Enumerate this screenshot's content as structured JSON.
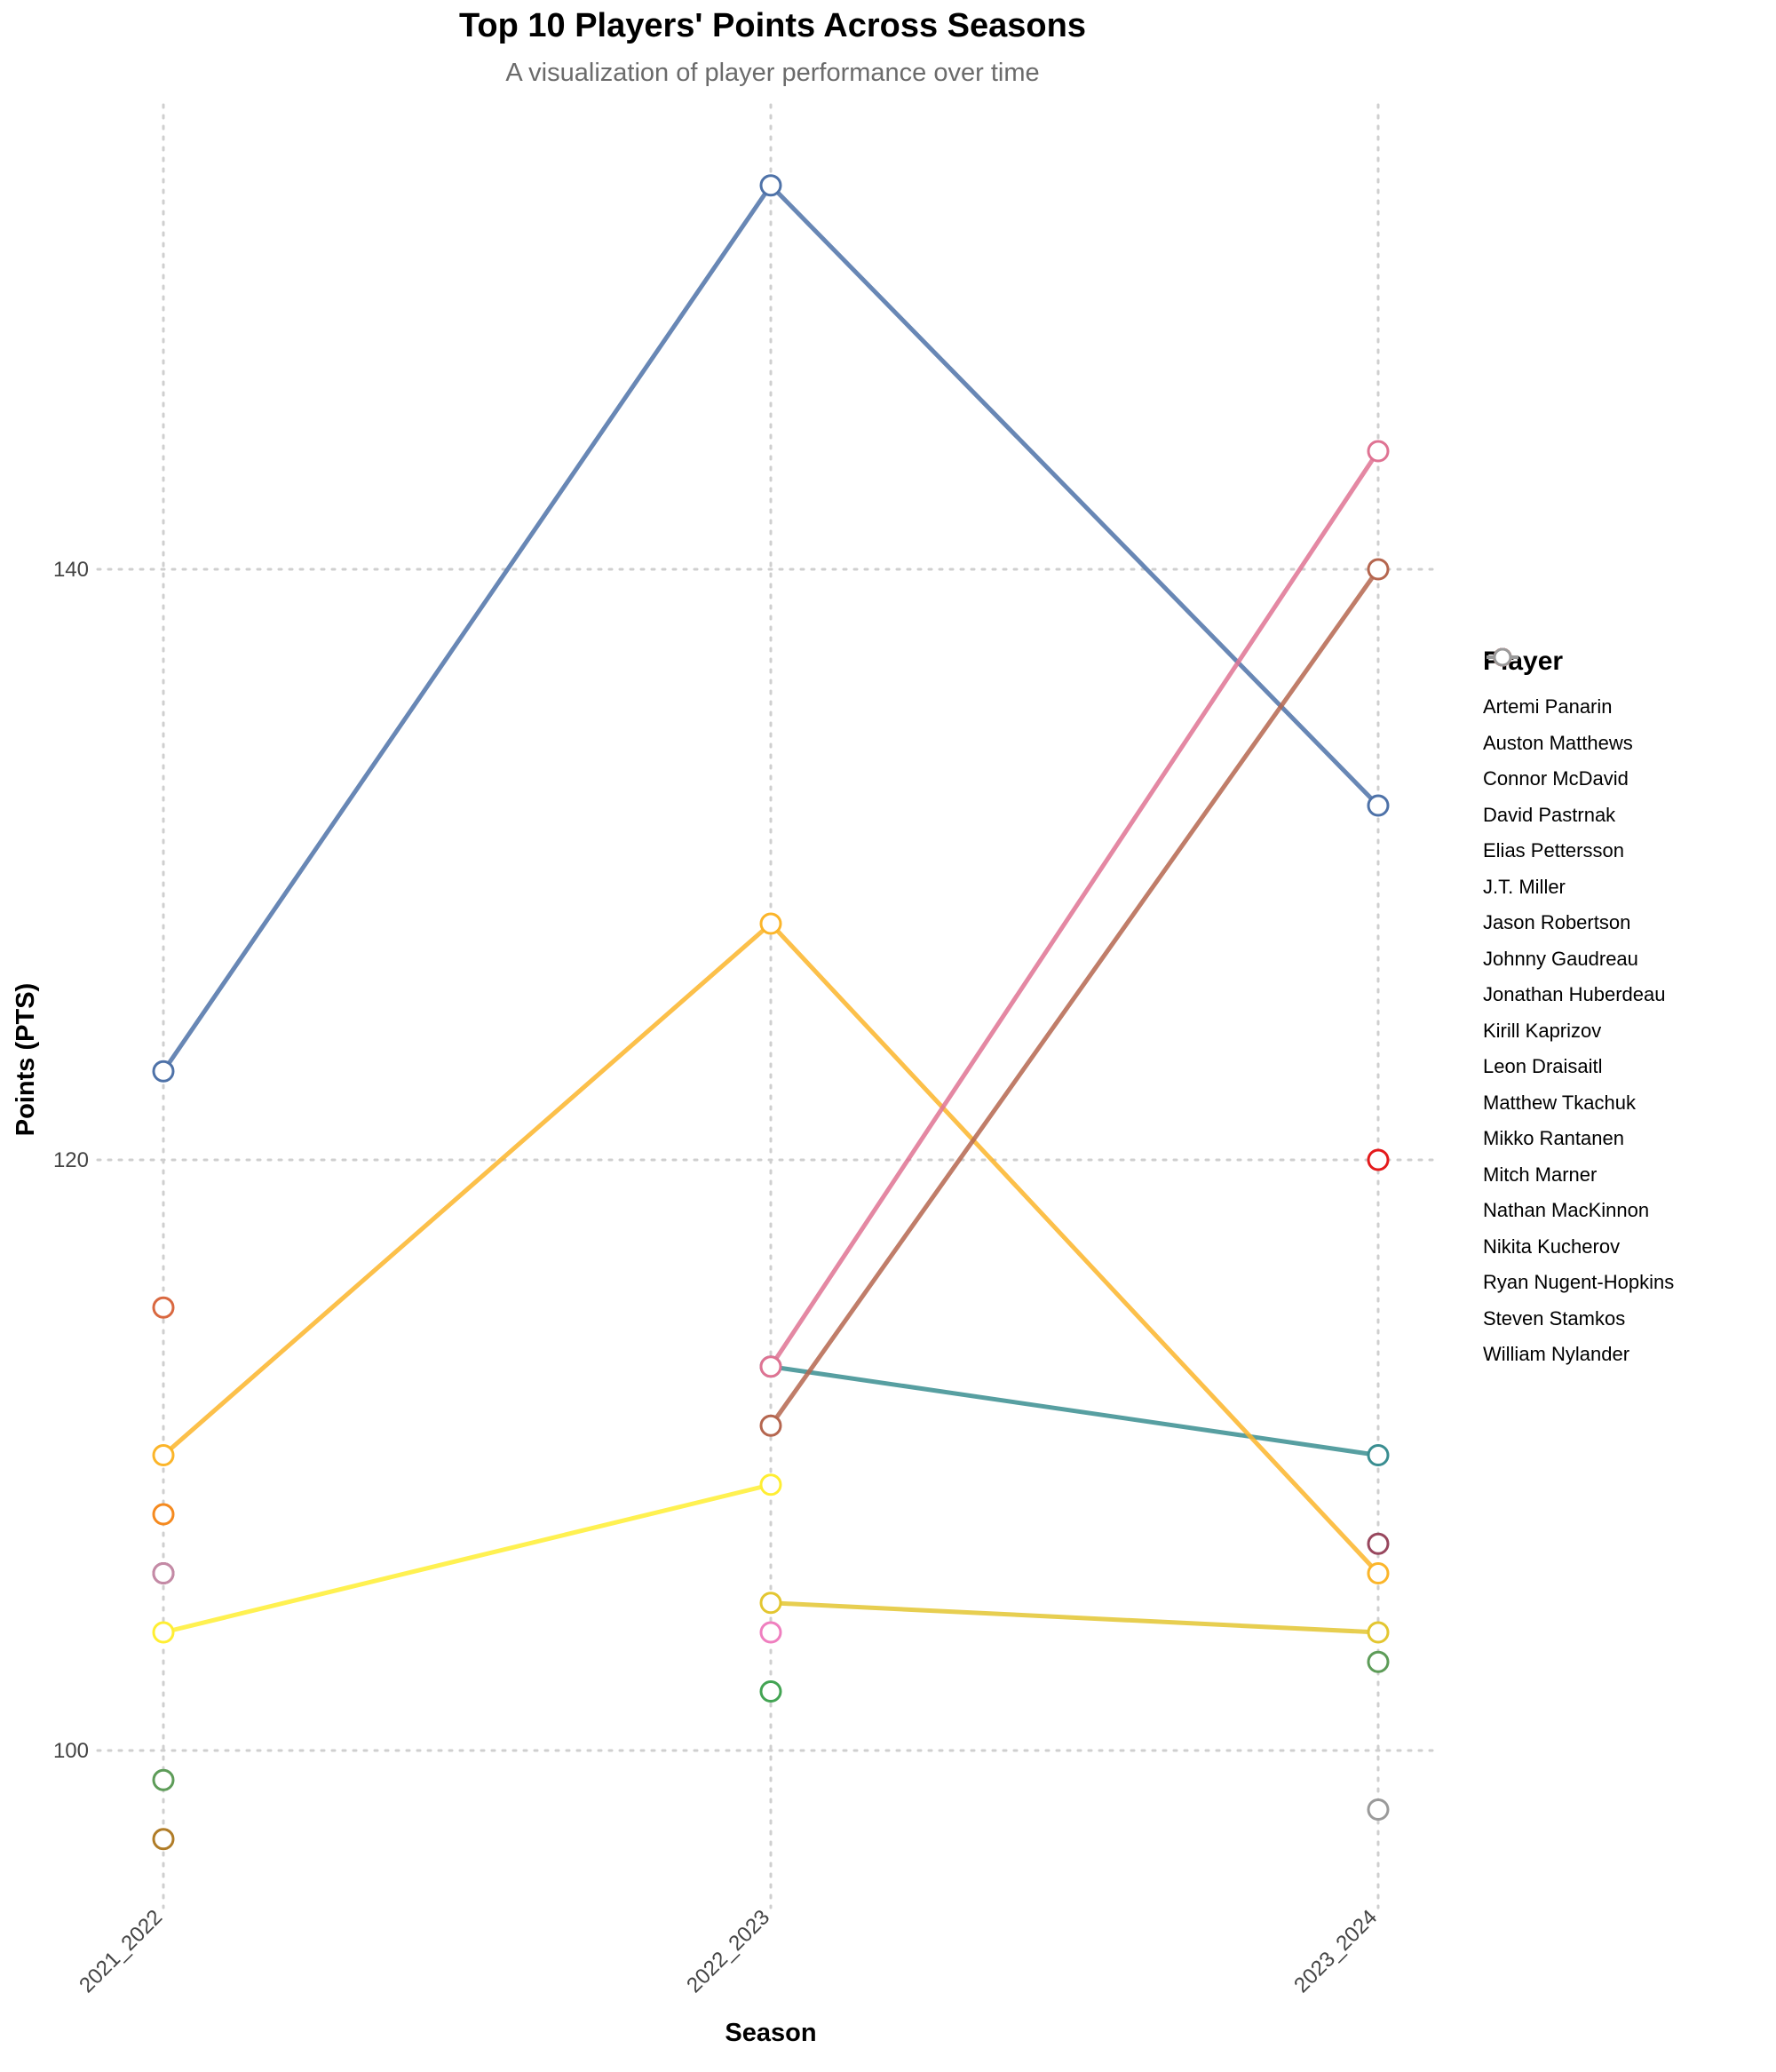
{
  "chart_data": {
    "type": "line",
    "title": "Top 10 Players' Points Across Seasons",
    "subtitle": "A visualization of player performance over time",
    "xlabel": "Season",
    "ylabel": "Points (PTS)",
    "categories": [
      "2021_2022",
      "2022_2023",
      "2023_2024"
    ],
    "ylim": [
      94,
      155
    ],
    "yticks": [
      100,
      120,
      140
    ],
    "grid": true,
    "legend_title": "Player",
    "legend_position": "right",
    "series": [
      {
        "name": "Artemi Panarin",
        "color": "#e41a1c",
        "values": [
          null,
          null,
          120
        ]
      },
      {
        "name": "Auston Matthews",
        "color": "#98475e",
        "values": [
          106,
          null,
          107
        ]
      },
      {
        "name": "Connor McDavid",
        "color": "#4e72a8",
        "values": [
          123,
          153,
          132
        ]
      },
      {
        "name": "David Pastrnak",
        "color": "#3a8e91",
        "values": [
          null,
          113,
          110
        ]
      },
      {
        "name": "Elias Pettersson",
        "color": "#43a453",
        "values": [
          null,
          102,
          null
        ]
      },
      {
        "name": "J.T. Miller",
        "color": "#5d9c58",
        "values": [
          99,
          null,
          103
        ]
      },
      {
        "name": "Jason Robertson",
        "color": "#7a6a86",
        "values": [
          null,
          null,
          null
        ]
      },
      {
        "name": "Johnny Gaudreau",
        "color": "#a04a9a",
        "values": [
          null,
          null,
          null
        ]
      },
      {
        "name": "Jonathan Huberdeau",
        "color": "#d96840",
        "values": [
          115,
          null,
          null
        ]
      },
      {
        "name": "Kirill Kaprizov",
        "color": "#f58a1f",
        "values": [
          108,
          null,
          null
        ]
      },
      {
        "name": "Leon Draisaitl",
        "color": "#fbb52a",
        "values": [
          110,
          128,
          106
        ]
      },
      {
        "name": "Matthew Tkachuk",
        "color": "#ffee33",
        "values": [
          104,
          109,
          null
        ]
      },
      {
        "name": "Mikko Rantanen",
        "color": "#e3c631",
        "values": [
          null,
          105,
          104
        ]
      },
      {
        "name": "Mitch Marner",
        "color": "#b07c27",
        "values": [
          97,
          null,
          null
        ]
      },
      {
        "name": "Nathan MacKinnon",
        "color": "#b5664f",
        "values": [
          null,
          111,
          140
        ]
      },
      {
        "name": "Nikita Kucherov",
        "color": "#df7393",
        "values": [
          null,
          113,
          144
        ]
      },
      {
        "name": "Ryan Nugent-Hopkins",
        "color": "#ef7fbf",
        "values": [
          null,
          104,
          null
        ]
      },
      {
        "name": "Steven Stamkos",
        "color": "#c48aa6",
        "values": [
          106,
          null,
          null
        ]
      },
      {
        "name": "William Nylander",
        "color": "#9a9a9a",
        "values": [
          null,
          null,
          98
        ]
      }
    ]
  }
}
